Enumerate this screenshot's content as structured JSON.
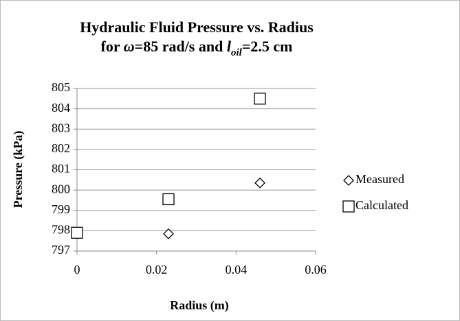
{
  "chart_data": {
    "type": "scatter",
    "title": [
      "Hydraulic Fluid Pressure vs. Radius",
      [
        "for ",
        "ω",
        "=85 rad/s and ",
        "l",
        "oil",
        "=2.5 cm"
      ]
    ],
    "xlabel": "Radius (m)",
    "ylabel": "Pressure (kPa)",
    "series": [
      {
        "name": "Measured",
        "marker": "diamond",
        "color": "#000000",
        "x": [
          0,
          0.023,
          0.046
        ],
        "values": [
          797.9,
          797.85,
          800.35
        ]
      },
      {
        "name": "Calculated",
        "marker": "square",
        "color": "#000000",
        "x": [
          0,
          0.023,
          0.046
        ],
        "values": [
          797.9,
          799.55,
          804.5
        ]
      }
    ],
    "xlim": [
      0,
      0.06
    ],
    "xticks": [
      0,
      0.02,
      0.04,
      0.06
    ],
    "ylim": [
      797,
      805
    ],
    "yticks": [
      797,
      798,
      799,
      800,
      801,
      802,
      803,
      804,
      805
    ],
    "grid": true,
    "legend": "right"
  }
}
